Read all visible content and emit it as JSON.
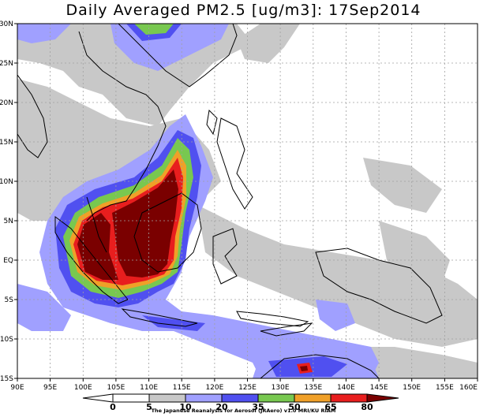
{
  "title": "Daily Averaged PM2.5 [ug/m3]: 17Sep2014",
  "footer": "The Japanese Reanalysis for Aerosol (JRAero) v1.0 MRI/KU RIAM",
  "axes": {
    "lon_ticks": [
      "90E",
      "95E",
      "100E",
      "105E",
      "110E",
      "115E",
      "120E",
      "125E",
      "130E",
      "135E",
      "140E",
      "145E",
      "150E",
      "155E",
      "160E"
    ],
    "lat_ticks": [
      "30N",
      "25N",
      "20N",
      "15N",
      "10N",
      "5N",
      "EQ",
      "5S",
      "10S",
      "15S"
    ],
    "lon_range": [
      90,
      160
    ],
    "lat_range": [
      -15,
      30
    ]
  },
  "colorbar": {
    "labels": [
      "0",
      "5",
      "10",
      "20",
      "35",
      "50",
      "65",
      "80"
    ],
    "colors": [
      "#ffffff",
      "#ffffff",
      "#c8c8c8",
      "#a0a0ff",
      "#5050f0",
      "#78c850",
      "#f0a028",
      "#e81e1e",
      "#7a0000"
    ]
  },
  "colors": {
    "land_outline": "#000000",
    "grid": "#a0a0a0"
  }
}
